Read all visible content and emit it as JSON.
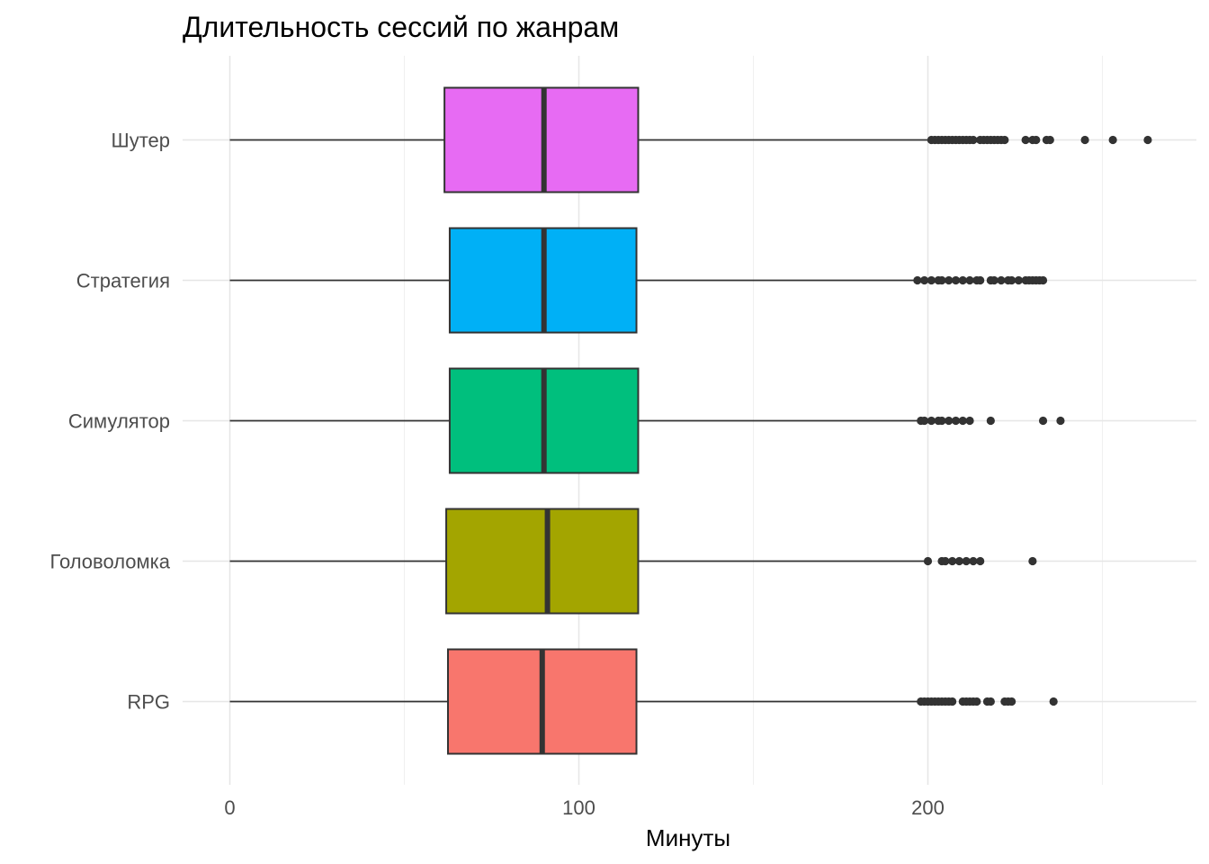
{
  "chart_data": {
    "type": "boxplot",
    "title": "Длительность сессий по жанрам",
    "xlabel": "Минуты",
    "ylabel": "",
    "xlim": [
      -10,
      276
    ],
    "x_ticks": [
      0,
      100,
      200
    ],
    "x_tick_labels": [
      "0",
      "100",
      "200"
    ],
    "x_minor_ticks": [
      50,
      150,
      250
    ],
    "grid": true,
    "legend": "none",
    "categories": [
      "RPG",
      "Головоломка",
      "Симулятор",
      "Стратегия",
      "Шутер"
    ],
    "series": [
      {
        "category": "RPG",
        "color": "#F8766D",
        "whisker_low": 0,
        "q1": 62.5,
        "median": 89.5,
        "q3": 116.5,
        "whisker_high": 197,
        "outliers": [
          198,
          199,
          200,
          201,
          202,
          203,
          204,
          205,
          206,
          207,
          210,
          211,
          212,
          213,
          214,
          217,
          218,
          222,
          223,
          224,
          236
        ]
      },
      {
        "category": "Головоломка",
        "color": "#A3A500",
        "whisker_low": 0,
        "q1": 62,
        "median": 91,
        "q3": 117,
        "whisker_high": 199,
        "outliers": [
          200,
          204,
          205,
          207,
          209,
          211,
          213,
          215,
          230
        ]
      },
      {
        "category": "Симулятор",
        "color": "#00BF7D",
        "whisker_low": 0,
        "q1": 63,
        "median": 90,
        "q3": 117,
        "whisker_high": 198,
        "outliers": [
          198,
          199,
          201,
          203,
          204,
          206,
          208,
          210,
          212,
          218,
          233,
          238
        ]
      },
      {
        "category": "Стратегия",
        "color": "#00B0F6",
        "whisker_low": 0,
        "q1": 63,
        "median": 90,
        "q3": 116.5,
        "whisker_high": 196,
        "outliers": [
          197,
          199,
          201,
          203,
          204,
          206,
          208,
          210,
          212,
          214,
          215,
          218,
          219,
          221,
          223,
          224,
          226,
          228,
          229,
          230,
          231,
          232,
          233
        ]
      },
      {
        "category": "Шутер",
        "color": "#E76BF3",
        "whisker_low": 0,
        "q1": 61.5,
        "median": 90,
        "q3": 117,
        "whisker_high": 200,
        "outliers": [
          201,
          202,
          203,
          204,
          205,
          206,
          207,
          208,
          209,
          210,
          211,
          212,
          213,
          215,
          216,
          217,
          218,
          219,
          220,
          221,
          222,
          228,
          230,
          231,
          234,
          235,
          245,
          253,
          263
        ]
      }
    ]
  }
}
